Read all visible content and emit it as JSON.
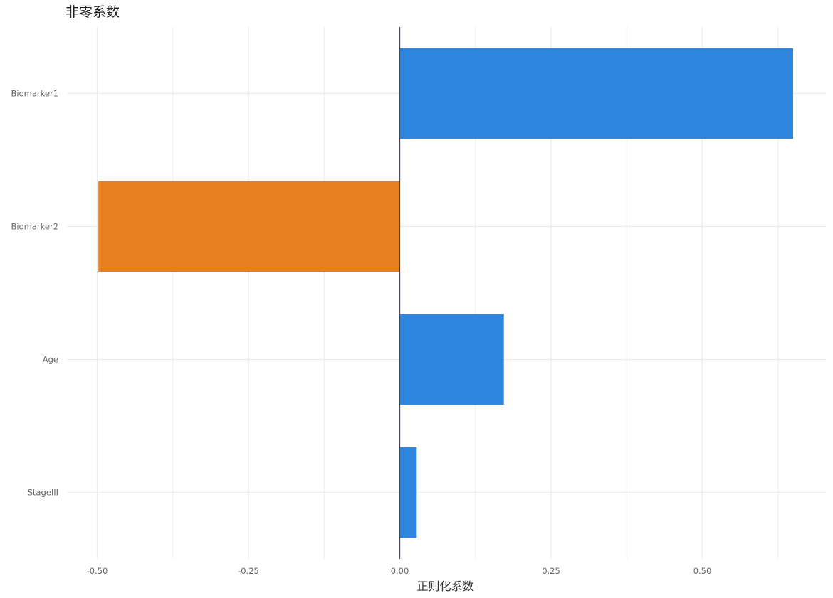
{
  "chart_data": {
    "type": "bar",
    "orientation": "horizontal",
    "title": "非零系数",
    "xlabel": "正则化系数",
    "ylabel": "",
    "categories": [
      "Biomarker1",
      "Biomarker2",
      "Age",
      "StageIII"
    ],
    "values": [
      0.65,
      -0.498,
      0.172,
      0.028
    ],
    "xlim": [
      -0.5,
      0.66
    ],
    "xticks": [
      -0.5,
      -0.25,
      0.0,
      0.25,
      0.5
    ],
    "xtick_labels": [
      "-0.50",
      "-0.25",
      "0.00",
      "0.25",
      "0.50"
    ],
    "grid": true,
    "legend": "none",
    "colors": {
      "positive": "#2E86DE",
      "negative": "#E67E22",
      "zero_line": "#3A4A6B",
      "grid": "#EBEBEB",
      "tick_text": "#666666",
      "label_text": "#333333"
    }
  }
}
